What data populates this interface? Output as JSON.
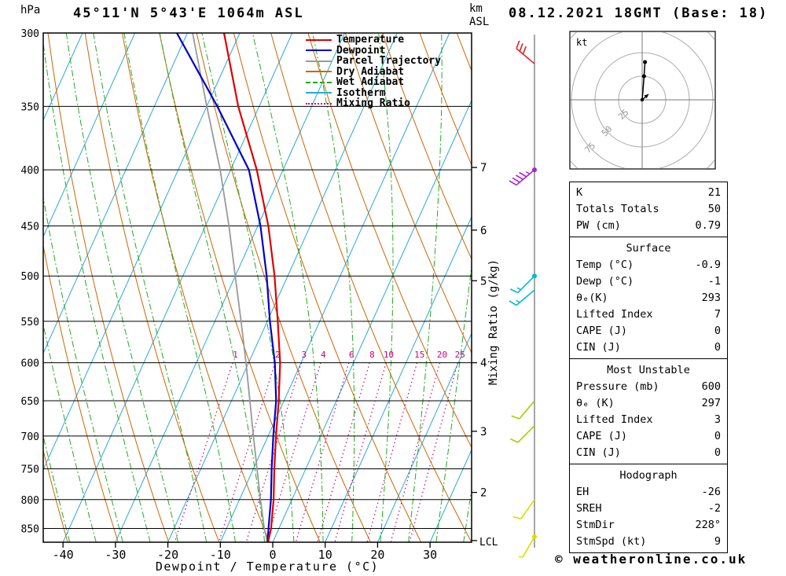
{
  "header": {
    "pressure_unit": "hPa",
    "title": "45°11'N 5°43'E 1064m ASL",
    "altitude_unit_line1": "km",
    "altitude_unit_line2": "ASL",
    "datetime": "08.12.2021 18GMT (Base: 18)"
  },
  "legend": [
    {
      "label": "Temperature",
      "color": "#dd0000",
      "style": "solid"
    },
    {
      "label": "Dewpoint",
      "color": "#0000cc",
      "style": "solid"
    },
    {
      "label": "Parcel Trajectory",
      "color": "#999999",
      "style": "solid"
    },
    {
      "label": "Dry Adiabat",
      "color": "#cc6600",
      "style": "solid"
    },
    {
      "label": "Wet Adiabat",
      "color": "#22aa22",
      "style": "dashdot"
    },
    {
      "label": "Isotherm",
      "color": "#2aa8d8",
      "style": "solid"
    },
    {
      "label": "Mixing Ratio",
      "color": "#cc0077",
      "style": "dotted"
    }
  ],
  "axes": {
    "xlabel": "Dewpoint / Temperature (°C)",
    "x_ticks": [
      -40,
      -30,
      -20,
      -10,
      0,
      10,
      20,
      30
    ],
    "pressure_ticks": [
      300,
      350,
      400,
      450,
      500,
      550,
      600,
      650,
      700,
      750,
      800,
      850
    ],
    "km_ticks": [
      {
        "label": "7",
        "pressure_hPa": 398
      },
      {
        "label": "6",
        "pressure_hPa": 454
      },
      {
        "label": "5",
        "pressure_hPa": 505
      },
      {
        "label": "4",
        "pressure_hPa": 600
      },
      {
        "label": "3",
        "pressure_hPa": 693
      },
      {
        "label": "2",
        "pressure_hPa": 788
      }
    ],
    "lcl_label": "LCL",
    "lcl_pressure_hPa": 872,
    "mixing_ratio_axis_label": "Mixing Ratio (g/kg)",
    "mixing_ratio_values": [
      1,
      2,
      3,
      4,
      6,
      8,
      10,
      15,
      20,
      25
    ]
  },
  "colors": {
    "temperature": "#dd0000",
    "dewpoint": "#0000cc",
    "parcel": "#999999",
    "dry_adiabat": "#cc6600",
    "wet_adiabat": "#22aa22",
    "isotherm": "#2aa8d8",
    "mixing_ratio": "#cc0077",
    "grid": "#000000",
    "wind_staff": "#888888"
  },
  "chart_data": {
    "type": "skewt-log-p sounding",
    "pressure_range_hPa": [
      300,
      875
    ],
    "temp_axis_range_C": [
      -44,
      38
    ],
    "sounding": {
      "pressure_hPa": [
        875,
        850,
        800,
        750,
        700,
        650,
        600,
        550,
        500,
        450,
        400,
        350,
        300
      ],
      "temperature_C": [
        -0.9,
        -1.5,
        -3.5,
        -6,
        -8.5,
        -11,
        -14,
        -18,
        -22.5,
        -28,
        -35,
        -44,
        -53
      ],
      "dewpoint_C": [
        -1,
        -2,
        -4,
        -6.5,
        -9,
        -11.5,
        -15,
        -19.5,
        -24,
        -29.5,
        -36.5,
        -48,
        -62
      ],
      "parcel_C": [
        -1,
        -2.8,
        -6,
        -9.3,
        -12.8,
        -16.5,
        -20.5,
        -25,
        -30,
        -35.5,
        -42,
        -50,
        -59
      ]
    },
    "wind_barbs": [
      {
        "pressure_hPa": 320,
        "speed_kt": 30,
        "dir_deg": 310,
        "color": "#dd2222"
      },
      {
        "pressure_hPa": 400,
        "speed_kt": 45,
        "dir_deg": 230,
        "color": "#aa22cc"
      },
      {
        "pressure_hPa": 500,
        "speed_kt": 15,
        "dir_deg": 225,
        "color": "#00bbcc"
      },
      {
        "pressure_hPa": 515,
        "speed_kt": 15,
        "dir_deg": 230,
        "color": "#00bbcc"
      },
      {
        "pressure_hPa": 650,
        "speed_kt": 10,
        "dir_deg": 220,
        "color": "#aacc00"
      },
      {
        "pressure_hPa": 685,
        "speed_kt": 10,
        "dir_deg": 225,
        "color": "#aacc00"
      },
      {
        "pressure_hPa": 800,
        "speed_kt": 10,
        "dir_deg": 215,
        "color": "#dddd00"
      },
      {
        "pressure_hPa": 865,
        "speed_kt": 5,
        "dir_deg": 210,
        "color": "#dddd00"
      }
    ],
    "wind_dots": [
      {
        "pressure_hPa": 400,
        "color": "#aa22cc"
      },
      {
        "pressure_hPa": 500,
        "color": "#00bbcc"
      },
      {
        "pressure_hPa": 865,
        "color": "#dddd00"
      }
    ],
    "hodograph": {
      "unit_label": "kt",
      "rings_kt": [
        25,
        50,
        75,
        100
      ],
      "ring_labels": [
        "25",
        "50",
        "75"
      ],
      "trace_u_kt": [
        0,
        1,
        2,
        3
      ],
      "trace_v_kt": [
        0,
        12,
        25,
        40
      ],
      "storm_dir_deg": 228,
      "storm_spd_kt": 9
    }
  },
  "indices": {
    "rows1": [
      {
        "label": "K",
        "value": "21"
      },
      {
        "label": "Totals Totals",
        "value": "50"
      },
      {
        "label": "PW (cm)",
        "value": "0.79"
      }
    ],
    "surface_header": "Surface",
    "rows2": [
      {
        "label": "Temp (°C)",
        "value": "-0.9"
      },
      {
        "label": "Dewp (°C)",
        "value": "-1"
      },
      {
        "label": "θₑ(K)",
        "value": "293"
      },
      {
        "label": "Lifted Index",
        "value": "7"
      },
      {
        "label": "CAPE (J)",
        "value": "0"
      },
      {
        "label": "CIN (J)",
        "value": "0"
      }
    ],
    "mu_header": "Most Unstable",
    "rows3": [
      {
        "label": "Pressure (mb)",
        "value": "600"
      },
      {
        "label": "θₑ (K)",
        "value": "297"
      },
      {
        "label": "Lifted Index",
        "value": "3"
      },
      {
        "label": "CAPE (J)",
        "value": "0"
      },
      {
        "label": "CIN (J)",
        "value": "0"
      }
    ],
    "hodo_header": "Hodograph",
    "rows4": [
      {
        "label": "EH",
        "value": "-26"
      },
      {
        "label": "SREH",
        "value": "-2"
      },
      {
        "label": "StmDir",
        "value": "228°"
      },
      {
        "label": "StmSpd (kt)",
        "value": "9"
      }
    ]
  },
  "footer": {
    "copyright": "© weatheronline.co.uk"
  }
}
